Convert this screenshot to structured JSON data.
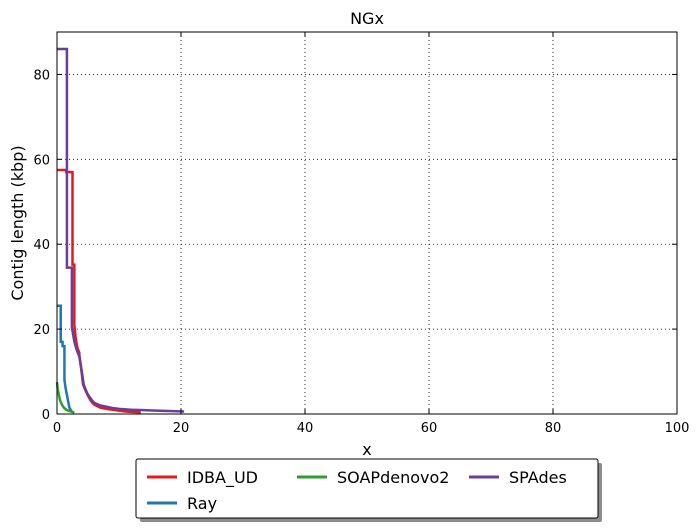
{
  "chart_data": {
    "type": "line",
    "title": "NGx",
    "xlabel": "x",
    "ylabel": "Contig length  (kbp)",
    "xlim": [
      0,
      100
    ],
    "ylim": [
      0,
      90
    ],
    "xticks": [
      0,
      20,
      40,
      60,
      80,
      100
    ],
    "yticks": [
      0,
      20,
      40,
      60,
      80
    ],
    "xtick_labels": [
      "0",
      "20",
      "40",
      "60",
      "80",
      "100"
    ],
    "ytick_labels": [
      "0",
      "20",
      "40",
      "60",
      "80"
    ],
    "grid": true,
    "legend_position": "bottom-outside",
    "series": [
      {
        "name": "IDBA_UD",
        "color": "#e41a1c",
        "x": [
          0,
          1.5,
          1.5,
          2.5,
          2.5,
          2.8,
          2.8,
          3.0,
          3.3,
          3.6,
          3.6,
          4.0,
          4.2,
          4.6,
          5.0,
          5.5,
          6.0,
          7.0,
          8.0,
          9.0,
          10.0,
          11.0,
          12.0,
          13.5
        ],
        "y": [
          57.5,
          57.5,
          57.0,
          57.0,
          35.2,
          35.2,
          21.0,
          18.0,
          15.5,
          14.5,
          14.0,
          9.5,
          7.0,
          5.5,
          4.3,
          3.0,
          2.2,
          1.5,
          1.2,
          1.0,
          0.8,
          0.6,
          0.5,
          0.4
        ]
      },
      {
        "name": "Ray",
        "color": "#1f77b4",
        "x": [
          0,
          0.6,
          0.6,
          0.9,
          0.9,
          1.2,
          1.2,
          1.4,
          1.6,
          1.8,
          2.0,
          2.4
        ],
        "y": [
          25.5,
          25.5,
          17.0,
          17.0,
          16.0,
          16.0,
          8.0,
          6.0,
          4.5,
          3.0,
          1.5,
          0.5
        ]
      },
      {
        "name": "SOAPdenovo2",
        "color": "#2ca02c",
        "x": [
          0,
          0.1,
          0.3,
          0.5,
          0.8,
          1.1,
          1.5,
          2.0,
          2.5,
          2.8
        ],
        "y": [
          7.5,
          6.0,
          4.5,
          3.2,
          2.2,
          1.5,
          1.0,
          0.7,
          0.5,
          0.3
        ]
      },
      {
        "name": "SPAdes",
        "color": "#6a3d9a",
        "x": [
          0,
          0.8,
          0.8,
          1.6,
          1.6,
          2.0,
          2.0,
          2.4,
          2.4,
          2.8,
          3.2,
          3.6,
          4.0,
          4.3,
          4.6,
          5.0,
          5.5,
          6.0,
          7.0,
          8.0,
          9.0,
          10.0,
          12.0,
          14.0,
          16.0,
          18.0,
          20.5
        ],
        "y": [
          86.0,
          86.0,
          86.0,
          86.0,
          34.5,
          34.5,
          34.5,
          34.5,
          20.5,
          17.0,
          15.0,
          13.5,
          10.0,
          7.0,
          5.8,
          4.5,
          3.5,
          2.6,
          2.0,
          1.7,
          1.4,
          1.2,
          1.0,
          0.9,
          0.8,
          0.7,
          0.6
        ]
      }
    ]
  }
}
